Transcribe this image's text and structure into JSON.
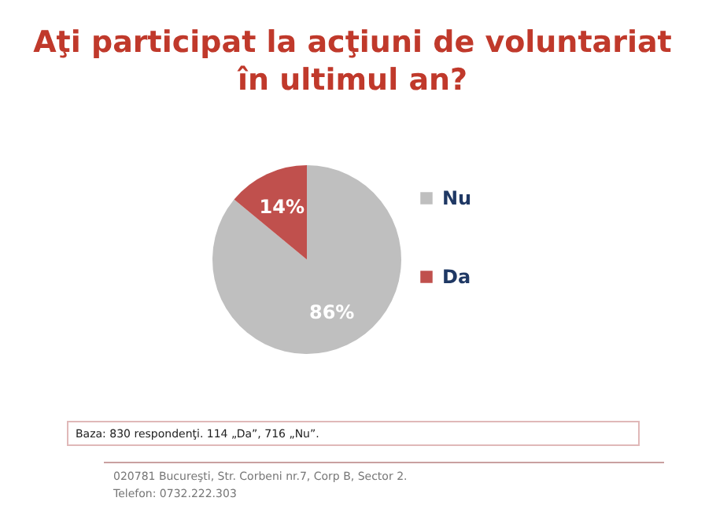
{
  "chart_data": {
    "type": "pie",
    "title": "Aţi participat la acţiuni de voluntariat\nîn ultimul an?",
    "categories": [
      "Nu",
      "Da"
    ],
    "values": [
      86,
      14
    ],
    "colors": [
      "#bfbfbf",
      "#c0504d"
    ],
    "value_labels": [
      "86%",
      "14%"
    ],
    "legend": "right",
    "annotations": [
      "Baza: 830 respondenţi. 114 „Da”, 716 „Nu”.",
      "020781 Bucureşti, Str. Corbeni nr.7, Corp B, Sector 2.",
      "Telefon: 0732.222.303"
    ]
  }
}
